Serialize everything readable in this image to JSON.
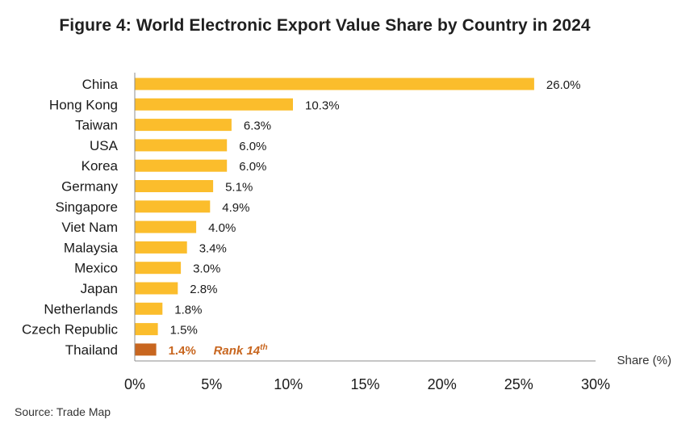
{
  "title": "Figure 4: World Electronic Export Value Share by Country in 2024",
  "source": "Source: Trade Map",
  "colors": {
    "bar": "#fbbd2c",
    "highlight": "#c8661f",
    "axis": "#8c8c8c"
  },
  "chart_data": {
    "type": "bar",
    "orientation": "horizontal",
    "title": "Figure 4: World Electronic Export Value Share by Country in 2024",
    "xlabel": "Share (%)",
    "ylabel": "",
    "xlim": [
      0,
      30
    ],
    "xticks": [
      0,
      5,
      10,
      15,
      20,
      25,
      30
    ],
    "xtick_labels": [
      "0%",
      "5%",
      "10%",
      "15%",
      "20%",
      "25%",
      "30%"
    ],
    "categories": [
      "China",
      "Hong Kong",
      "Taiwan",
      "USA",
      "Korea",
      "Germany",
      "Singapore",
      "Viet Nam",
      "Malaysia",
      "Mexico",
      "Japan",
      "Netherlands",
      "Czech Republic",
      "Thailand"
    ],
    "values": [
      26.0,
      10.3,
      6.3,
      6.0,
      6.0,
      5.1,
      4.9,
      4.0,
      3.4,
      3.0,
      2.8,
      1.8,
      1.5,
      1.4
    ],
    "value_labels": [
      "26.0%",
      "10.3%",
      "6.3%",
      "6.0%",
      "6.0%",
      "5.1%",
      "4.9%",
      "4.0%",
      "3.4%",
      "3.0%",
      "2.8%",
      "1.8%",
      "1.5%",
      "1.4%"
    ],
    "highlight": {
      "category": "Thailand",
      "annotation": "Rank 14",
      "annotation_sup": "th"
    },
    "grid": false,
    "legend": "none"
  }
}
